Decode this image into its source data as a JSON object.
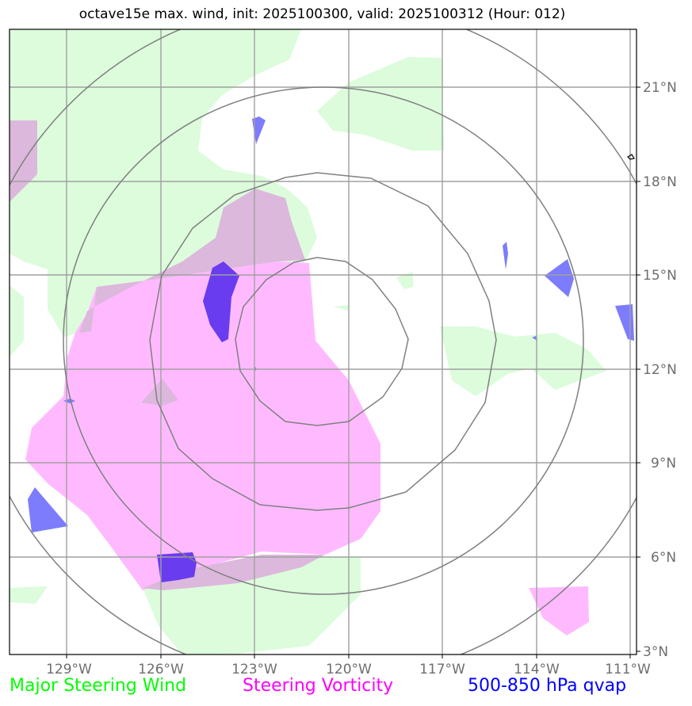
{
  "title": "octave15e max. wind, init: 2025100300, valid: 2025100312 (Hour: 012)",
  "legend": [
    {
      "label": "Major Steering Wind",
      "color": "#00ff00"
    },
    {
      "label": "Steering Vorticity",
      "color": "#ff00ff"
    },
    {
      "label": "500-850 hPa qvap",
      "color": "#0000ff"
    }
  ],
  "lon_ticks": [
    "129°W",
    "126°W",
    "123°W",
    "120°W",
    "117°W",
    "114°W",
    "111°W"
  ],
  "lat_ticks": [
    "21°N",
    "18°N",
    "15°N",
    "12°N",
    "9°N",
    "6°N",
    "3°N"
  ],
  "range_ring_count": 4,
  "colors": {
    "wind_fill": "#dcfcdc",
    "vorticity_fill": "#ffbaff",
    "overlap_fill": "#dcb8dc",
    "qvap_fill": "#7c7cfc",
    "qvap_dark": "#6a3cf0",
    "grid": "#a0a0a0",
    "rings": "#808080"
  }
}
